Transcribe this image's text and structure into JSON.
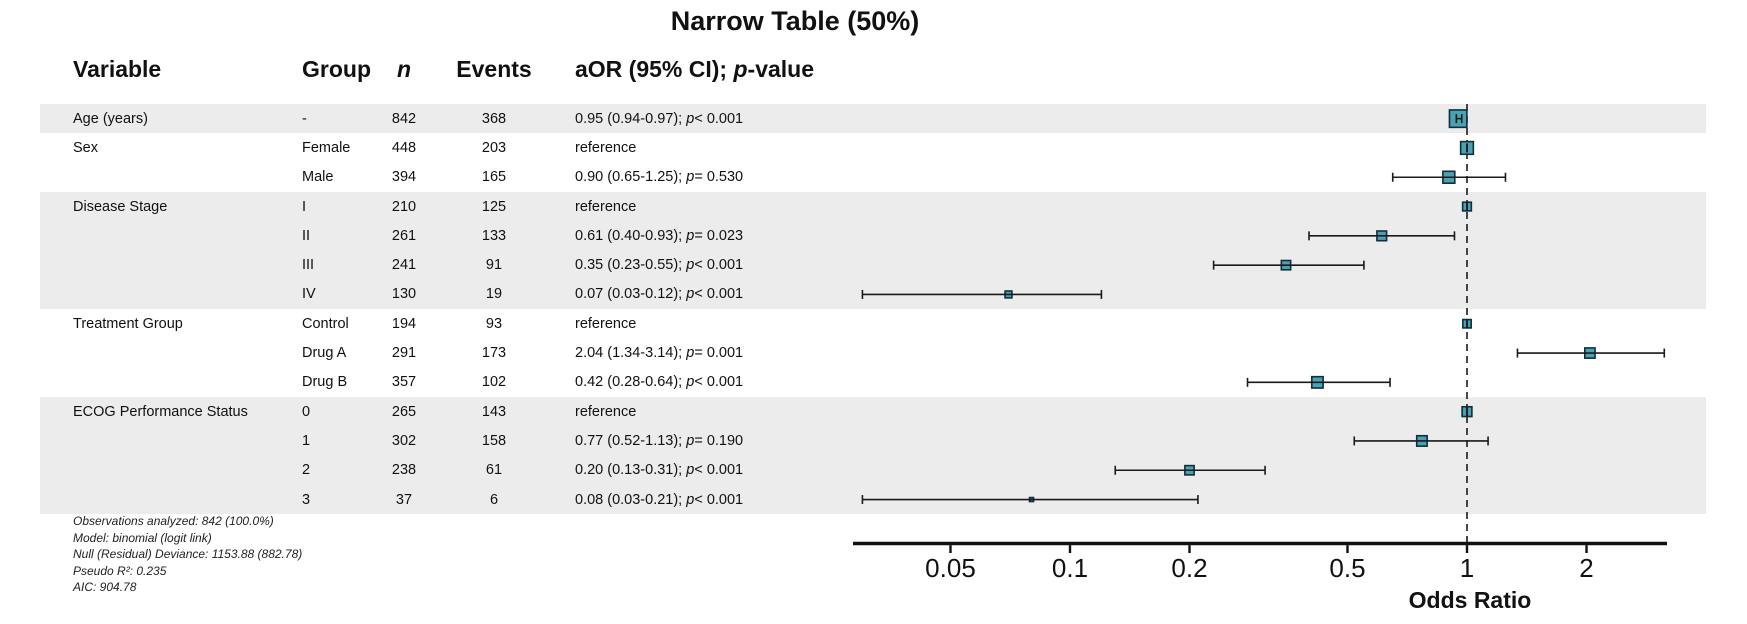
{
  "title": "Narrow Table (50%)",
  "colors": {
    "marker_fill": "#4BA1B1",
    "marker_border": "#0f2f3a",
    "band": "#ececec",
    "line": "#1a1a1a",
    "axis": "#111111"
  },
  "chart_data": {
    "type": "forest",
    "title": "Narrow Table (50%)",
    "xlabel": "Odds Ratio",
    "x_scale": "log",
    "x_ticks": [
      "0.05",
      "0.1",
      "0.2",
      "0.5",
      "1",
      "2"
    ],
    "x_domain": [
      0.028,
      3.2
    ],
    "reference_line": 1,
    "columns": [
      "Variable",
      "Group",
      "n",
      "Events",
      "aOR (95% CI); p-value"
    ],
    "rows": [
      {
        "variable": "Age (years)",
        "group": "-",
        "n": 842,
        "events": 368,
        "or": 0.95,
        "ci_low": 0.94,
        "ci_high": 0.97,
        "estimate_label": "0.95 (0.94-0.97)",
        "p_label": "p < 0.001",
        "reference": false
      },
      {
        "variable": "Sex",
        "group": "Female",
        "n": 448,
        "events": 203,
        "or": 1.0,
        "ci_low": 1.0,
        "ci_high": 1.0,
        "estimate_label": "reference",
        "p_label": "",
        "reference": true
      },
      {
        "variable": "",
        "group": "Male",
        "n": 394,
        "events": 165,
        "or": 0.9,
        "ci_low": 0.65,
        "ci_high": 1.25,
        "estimate_label": "0.90 (0.65-1.25)",
        "p_label": "p = 0.530",
        "reference": false
      },
      {
        "variable": "Disease Stage",
        "group": "I",
        "n": 210,
        "events": 125,
        "or": 1.0,
        "ci_low": 1.0,
        "ci_high": 1.0,
        "estimate_label": "reference",
        "p_label": "",
        "reference": true
      },
      {
        "variable": "",
        "group": "II",
        "n": 261,
        "events": 133,
        "or": 0.61,
        "ci_low": 0.4,
        "ci_high": 0.93,
        "estimate_label": "0.61 (0.40-0.93)",
        "p_label": "p = 0.023",
        "reference": false
      },
      {
        "variable": "",
        "group": "III",
        "n": 241,
        "events": 91,
        "or": 0.35,
        "ci_low": 0.23,
        "ci_high": 0.55,
        "estimate_label": "0.35 (0.23-0.55)",
        "p_label": "p < 0.001",
        "reference": false
      },
      {
        "variable": "",
        "group": "IV",
        "n": 130,
        "events": 19,
        "or": 0.07,
        "ci_low": 0.03,
        "ci_high": 0.12,
        "estimate_label": "0.07 (0.03-0.12)",
        "p_label": "p < 0.001",
        "reference": false
      },
      {
        "variable": "Treatment Group",
        "group": "Control",
        "n": 194,
        "events": 93,
        "or": 1.0,
        "ci_low": 1.0,
        "ci_high": 1.0,
        "estimate_label": "reference",
        "p_label": "",
        "reference": true
      },
      {
        "variable": "",
        "group": "Drug A",
        "n": 291,
        "events": 173,
        "or": 2.04,
        "ci_low": 1.34,
        "ci_high": 3.14,
        "estimate_label": "2.04 (1.34-3.14)",
        "p_label": "p = 0.001",
        "reference": false
      },
      {
        "variable": "",
        "group": "Drug B",
        "n": 357,
        "events": 102,
        "or": 0.42,
        "ci_low": 0.28,
        "ci_high": 0.64,
        "estimate_label": "0.42 (0.28-0.64)",
        "p_label": "p < 0.001",
        "reference": false
      },
      {
        "variable": "ECOG Performance Status",
        "group": "0",
        "n": 265,
        "events": 143,
        "or": 1.0,
        "ci_low": 1.0,
        "ci_high": 1.0,
        "estimate_label": "reference",
        "p_label": "",
        "reference": true
      },
      {
        "variable": "",
        "group": "1",
        "n": 302,
        "events": 158,
        "or": 0.77,
        "ci_low": 0.52,
        "ci_high": 1.13,
        "estimate_label": "0.77 (0.52-1.13)",
        "p_label": "p = 0.190",
        "reference": false
      },
      {
        "variable": "",
        "group": "2",
        "n": 238,
        "events": 61,
        "or": 0.2,
        "ci_low": 0.13,
        "ci_high": 0.31,
        "estimate_label": "0.20 (0.13-0.31)",
        "p_label": "p < 0.001",
        "reference": false
      },
      {
        "variable": "",
        "group": "3",
        "n": 37,
        "events": 6,
        "or": 0.08,
        "ci_low": 0.03,
        "ci_high": 0.21,
        "estimate_label": "0.08 (0.03-0.21)",
        "p_label": "p < 0.001",
        "reference": false
      }
    ],
    "footnotes": [
      "Observations analyzed: 842 (100.0%)",
      "Model: binomial (logit link)",
      "Null (Residual) Deviance: 1153.88 (882.78)",
      "Pseudo R²: 0.235",
      "AIC: 904.78"
    ]
  }
}
